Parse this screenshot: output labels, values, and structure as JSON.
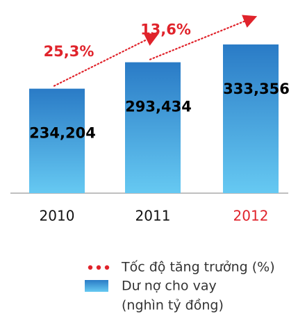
{
  "chart_data": {
    "type": "bar",
    "categories": [
      "2010",
      "2011",
      "2012"
    ],
    "category_colors": [
      "#111111",
      "#111111",
      "#e0232b"
    ],
    "ylim": [
      0,
      433
    ],
    "series": [
      {
        "name": "Dư nợ cho vay",
        "unit": "(nghìn tỷ đồng)",
        "color_top": "#2a7bc6",
        "color_bottom": "#66c9f2",
        "values": [
          234.204,
          293.434,
          333.356
        ],
        "value_labels": [
          "234,204",
          "293,434",
          "333,356"
        ]
      },
      {
        "name": "Tốc độ tăng trưởng (%)",
        "color": "#e0232b",
        "values": [
          null,
          25.3,
          13.6
        ],
        "value_labels": [
          null,
          "25,3%",
          "13,6%"
        ]
      }
    ]
  }
}
